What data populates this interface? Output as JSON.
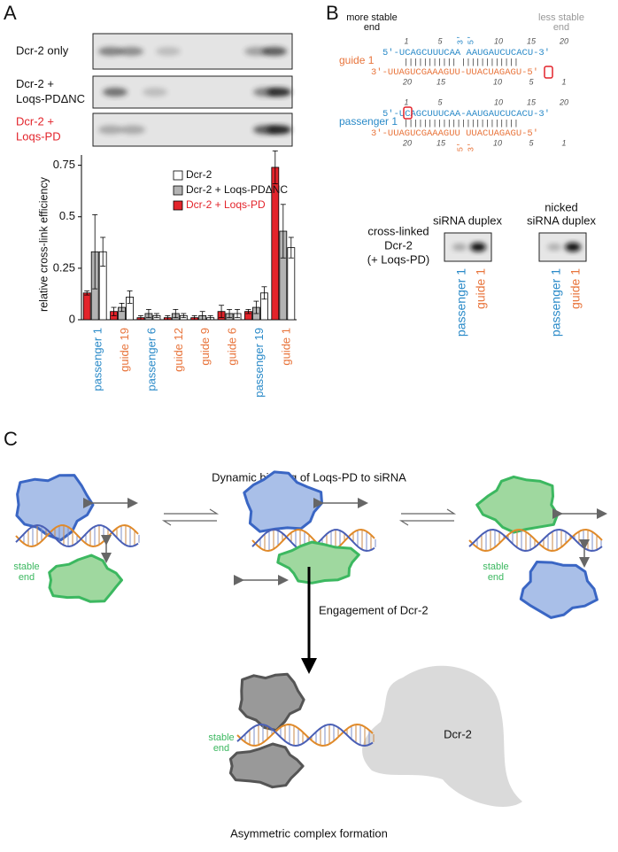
{
  "chart_data": {
    "type": "bar",
    "y_label": "relative cross-link efficiency",
    "categories": [
      "passenger 1",
      "guide 19",
      "passenger 6",
      "guide 12",
      "guide 9",
      "guide 6",
      "passenger 19",
      "guide 1"
    ],
    "category_colors": [
      "#2a8ac8",
      "#e8743b",
      "#2a8ac8",
      "#e8743b",
      "#e8743b",
      "#e8743b",
      "#2a8ac8",
      "#e8743b"
    ],
    "series": [
      {
        "name": "Dcr-2 + Loqs-PD",
        "color": "#e3242b",
        "values": [
          0.13,
          0.04,
          0.01,
          0.01,
          0.01,
          0.04,
          0.04,
          0.74
        ],
        "errors": [
          0.01,
          0.02,
          0.01,
          0.01,
          0.01,
          0.03,
          0.01,
          0.08
        ]
      },
      {
        "name": "Dcr-2 + Loqs-PDΔNC",
        "color": "#b3b3b3",
        "values": [
          0.33,
          0.06,
          0.03,
          0.03,
          0.02,
          0.03,
          0.06,
          0.43
        ],
        "errors": [
          0.18,
          0.02,
          0.02,
          0.02,
          0.02,
          0.02,
          0.03,
          0.13
        ]
      },
      {
        "name": "Dcr-2",
        "color": "#ffffff",
        "values": [
          0.33,
          0.11,
          0.02,
          0.02,
          0.01,
          0.03,
          0.13,
          0.35
        ],
        "errors": [
          0.07,
          0.03,
          0.01,
          0.01,
          0.01,
          0.02,
          0.03,
          0.05
        ]
      }
    ],
    "ylim": [
      0,
      0.8
    ],
    "yticks": [
      0,
      0.25,
      0.5,
      0.75
    ]
  },
  "panel_a": {
    "letter": "A",
    "gel_labels": [
      [
        "Dcr-2 only"
      ],
      [
        "Dcr-2 +",
        "Loqs-PDΔNC"
      ],
      [
        "Dcr-2 +",
        "Loqs-PD"
      ]
    ]
  },
  "panel_b": {
    "letter": "B",
    "more_stable": [
      "more stable",
      "end"
    ],
    "less_stable": [
      "less stable",
      "end"
    ],
    "guide_label": "guide 1",
    "passenger_label": "passenger 1",
    "top_numbers": [
      "1",
      "5",
      "10",
      "15",
      "20"
    ],
    "bottom_numbers": [
      "20",
      "15",
      "10",
      "5",
      "1"
    ],
    "guide_block": {
      "top": "5'-UCAGCUUUCAA AAUGAUCUCACU-3'",
      "pairs": "||||||||||| ||||||||||||",
      "bottom": "3'-UUAGUCGAAAGUU-UUACUAGAGU-5'",
      "nick_top": [
        "3'",
        "5'"
      ]
    },
    "passenger_block": {
      "top": "5'-UCAGCUUUCAA-AAUGAUCUCACU-3'",
      "pairs": "||||||||||||||||||||||||",
      "bottom": "3'-UUAGUCGAAAGUU UUACUAGAGU-5'",
      "nick_bottom": [
        "5'",
        "3'"
      ]
    },
    "gel_titles": [
      [
        "siRNA duplex"
      ],
      [
        "nicked",
        "siRNA duplex"
      ]
    ],
    "row_label": [
      "cross-linked",
      "Dcr-2",
      "(+ Loqs-PD)"
    ],
    "lanes": [
      "passenger 1",
      "guide 1"
    ]
  },
  "panel_c": {
    "letter": "C",
    "title": "Dynamic binding of Loqs-PD to siRNA",
    "stable_end": [
      "stable",
      "end"
    ],
    "engagement": "Engagement of Dcr-2",
    "dcr2": "Dcr-2",
    "caption": "Asymmetric complex formation"
  }
}
